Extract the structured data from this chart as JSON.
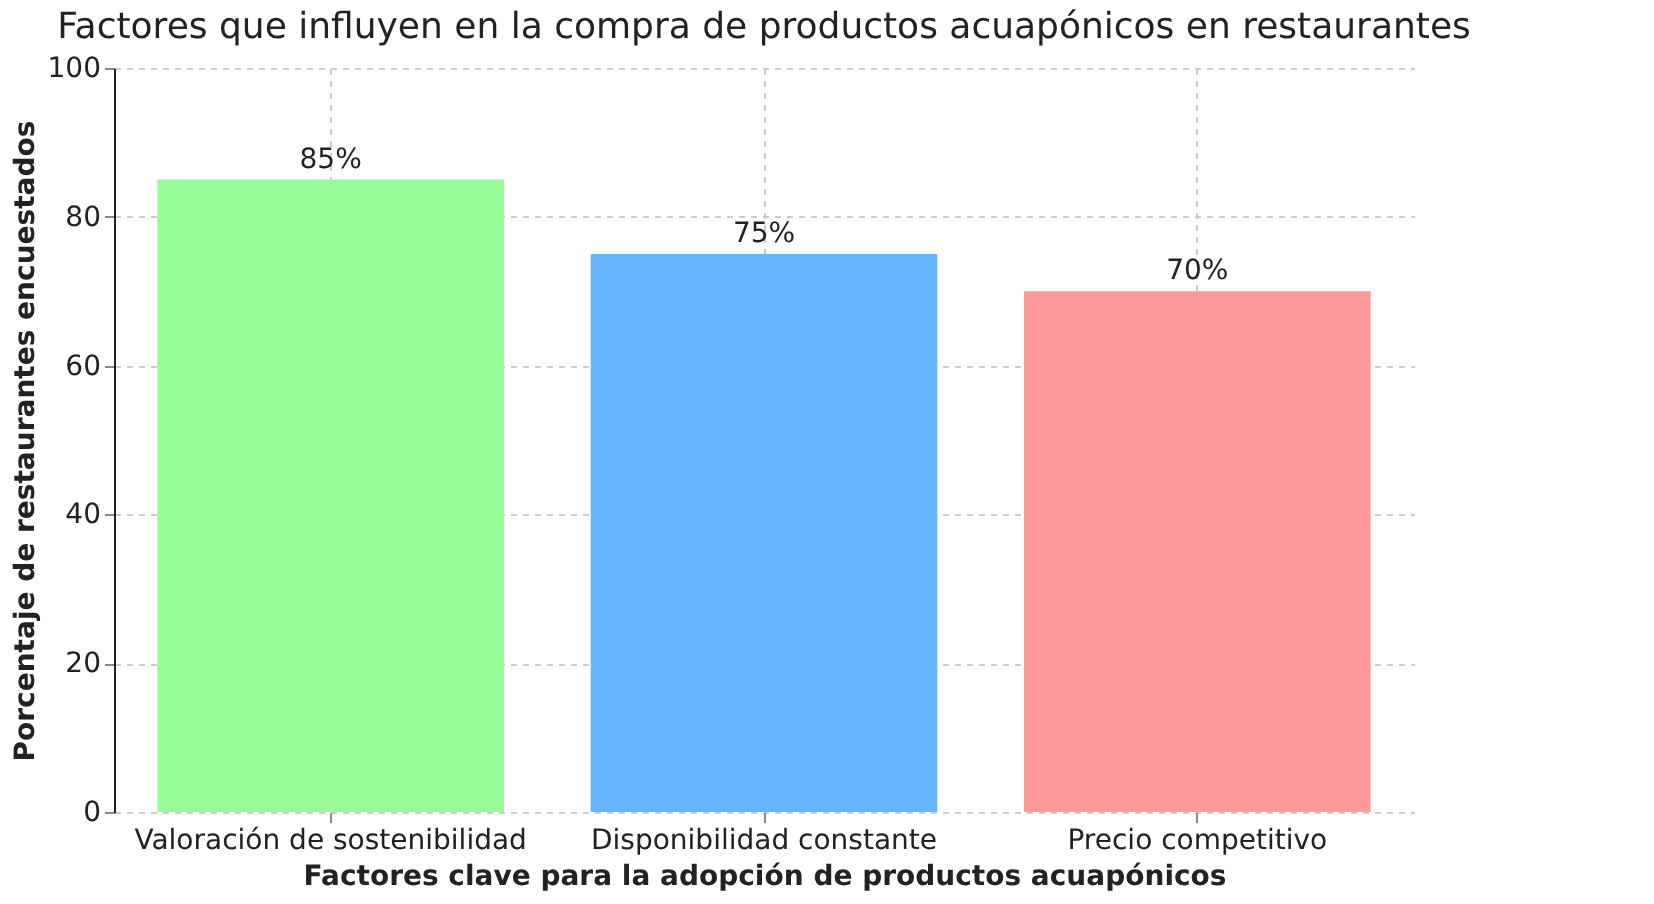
{
  "chart_data": {
    "type": "bar",
    "title": "Factores que influyen en la compra de productos acuapónicos en restaurantes",
    "xlabel": "Factores clave para la adopción de productos acuapónicos",
    "ylabel": "Porcentaje de restaurantes encuestados",
    "categories": [
      "Valoración de sostenibilidad",
      "Disponibilidad constante",
      "Precio competitivo"
    ],
    "values": [
      85,
      75,
      70
    ],
    "colors": [
      "#98fb98",
      "#66b3ff",
      "#ff9999"
    ],
    "value_labels": [
      "85%",
      "75%",
      "70%"
    ],
    "ylim": [
      0,
      100
    ],
    "yticks": [
      0,
      20,
      40,
      60,
      80,
      100
    ],
    "grid": true
  }
}
